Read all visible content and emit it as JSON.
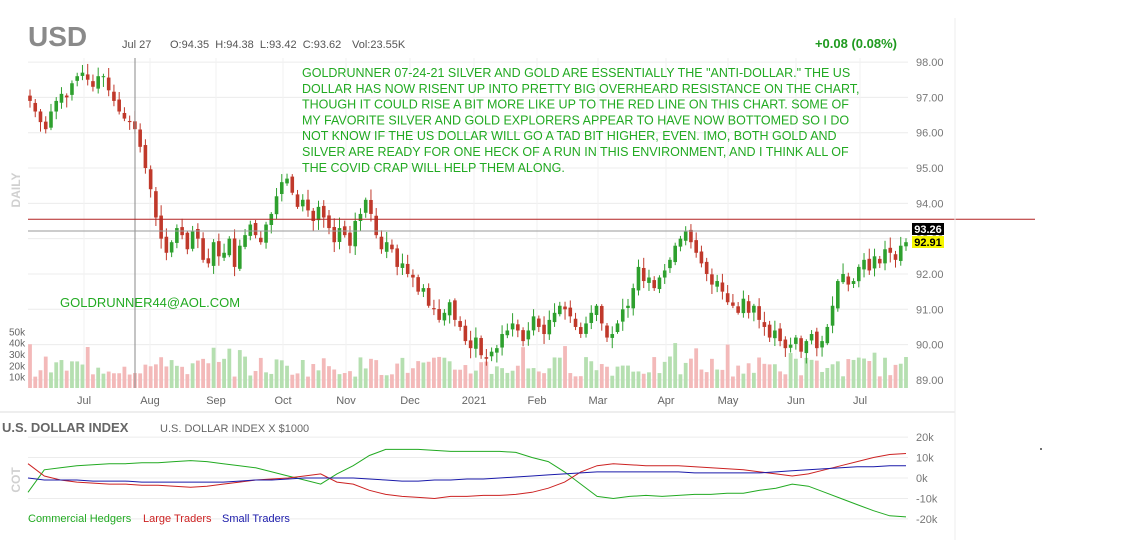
{
  "header": {
    "symbol": "USD",
    "date": "Jul 27",
    "ohlc": "O:94.35  H:94.38  L:93.42  C:93.62",
    "volume": "Vol:23.55K",
    "change": "+0.08 (0.08%)"
  },
  "annotation": {
    "lines": [
      "GOLDRUNNER 07-24-21 SILVER AND GOLD ARE ESSENTIALLY THE \"ANTI-DOLLAR.\"  THE US",
      "DOLLAR HAS NOW RISENT UP INTO PRETTY BIG OVERHEARD RESISTANCE ON THE CHART,",
      "THOUGH IT COULD RISE A BIT MORE LIKE UP TO THE RED LINE ON THIS CHART.  SOME OF",
      "MY FAVORITE SILVER AND GOLD EXPLORERS APPEAR TO HAVE NOW BOTTOMED SO I DO",
      "NOT KNOW IF THE US DOLLAR WILL GO A TAD BIT HIGHER, EVEN.  IMO, BOTH GOLD AND",
      "SILVER ARE READY FOR ONE HECK OF A RUN IN THIS ENVIRONMENT, AND I THINK ALL OF",
      "THE COVID CRAP WILL HELP THEM ALONG."
    ],
    "email": "GOLDRUNNER44@AOL.COM"
  },
  "side_labels": {
    "daily": "DAILY",
    "cot": "COT"
  },
  "chart_data": [
    {
      "type": "candlestick",
      "title": "USD",
      "x_tick_labels": [
        "Jul",
        "Aug",
        "Sep",
        "Oct",
        "Nov",
        "Dec",
        "2021",
        "Feb",
        "Mar",
        "Apr",
        "May",
        "Jun",
        "Jul"
      ],
      "y_tick_labels": [
        "98.00",
        "97.00",
        "96.00",
        "95.00",
        "94.00",
        "93.00",
        "92.00",
        "91.00",
        "90.00",
        "89.00"
      ],
      "ylim": [
        88.8,
        98.2
      ],
      "price_labels": {
        "upper": "93.26",
        "lower": "92.91"
      },
      "resistance_line": 93.55,
      "grid": true,
      "closes_approx": [
        96.9,
        96.6,
        96.3,
        96.1,
        96.6,
        96.9,
        97.1,
        97.0,
        97.4,
        97.6,
        97.7,
        97.5,
        97.3,
        97.6,
        97.6,
        97.2,
        96.9,
        96.6,
        96.4,
        96.3,
        96.1,
        95.6,
        95.0,
        94.4,
        93.6,
        93.0,
        92.6,
        92.9,
        93.3,
        93.1,
        92.7,
        93.2,
        93.0,
        92.4,
        92.3,
        92.9,
        92.5,
        92.6,
        93.0,
        92.2,
        92.8,
        93.1,
        93.4,
        93.1,
        92.9,
        93.4,
        93.7,
        94.2,
        94.6,
        94.7,
        94.3,
        93.9,
        94.1,
        93.8,
        93.5,
        93.9,
        93.6,
        93.3,
        92.9,
        93.3,
        93.1,
        92.8,
        93.5,
        93.7,
        94.1,
        93.7,
        93.1,
        92.7,
        92.9,
        92.7,
        92.2,
        92.3,
        92.0,
        91.9,
        91.5,
        91.6,
        91.1,
        91.0,
        90.7,
        90.9,
        91.2,
        90.7,
        90.5,
        90.1,
        89.9,
        90.2,
        89.7,
        89.6,
        89.8,
        89.9,
        90.3,
        90.4,
        90.6,
        90.4,
        90.1,
        90.4,
        90.8,
        90.5,
        90.3,
        90.7,
        90.9,
        91.1,
        91.0,
        90.8,
        90.5,
        90.3,
        90.6,
        90.9,
        91.1,
        90.6,
        90.2,
        90.3,
        90.6,
        91.0,
        91.1,
        91.6,
        92.2,
        91.8,
        91.9,
        91.6,
        91.9,
        92.1,
        92.4,
        92.8,
        93.0,
        93.2,
        92.9,
        92.6,
        92.3,
        92.0,
        91.7,
        91.8,
        91.5,
        91.2,
        91.1,
        90.9,
        91.3,
        90.9,
        91.1,
        90.7,
        90.5,
        90.2,
        90.4,
        90.1,
        89.9,
        90.0,
        90.2,
        89.8,
        90.1,
        90.3,
        89.9,
        90.1,
        90.5,
        91.1,
        91.8,
        92.0,
        91.7,
        91.8,
        92.2,
        92.4,
        92.1,
        92.5,
        92.3,
        92.7,
        92.6,
        92.4,
        92.8,
        92.9
      ]
    },
    {
      "type": "bar",
      "title": "Volume",
      "y_tick_labels": [
        "50k",
        "40k",
        "30k",
        "20k",
        "10k"
      ],
      "ylim": [
        0,
        60
      ]
    },
    {
      "type": "line",
      "title": "U.S. DOLLAR INDEX",
      "subtitle": "U.S. DOLLAR INDEX X $1000",
      "y_tick_labels": [
        "20k",
        "10k",
        "0k",
        "-10k",
        "-20k"
      ],
      "ylim": [
        -22,
        22
      ],
      "series": [
        {
          "name": "Commercial Hedgers",
          "color": "#22aa22",
          "values": [
            -7,
            4,
            5,
            6,
            6.5,
            7,
            7,
            7.5,
            7.5,
            8,
            8.5,
            8,
            7,
            6,
            5,
            3,
            1,
            -1,
            -3,
            2,
            6,
            11,
            14,
            14,
            14,
            13.5,
            13,
            13,
            13,
            13,
            12.5,
            10,
            8,
            3,
            -3,
            -9,
            -10,
            -9,
            -8.5,
            -9,
            -8.5,
            -8,
            -8,
            -7.5,
            -7.5,
            -6,
            -5,
            -3,
            -4,
            -7,
            -10,
            -13,
            -16,
            -18.5,
            -19
          ]
        },
        {
          "name": "Large Traders",
          "color": "#cc2222",
          "values": [
            7,
            1,
            -1,
            -2,
            -2.5,
            -3,
            -3,
            -3.5,
            -3.5,
            -4,
            -4.5,
            -4,
            -3,
            -2,
            -1,
            -0.5,
            0,
            1,
            2,
            -2,
            -3,
            -6,
            -8,
            -9,
            -9.5,
            -10,
            -9,
            -9,
            -8.5,
            -8.5,
            -8,
            -7,
            -5,
            -2,
            3,
            6,
            7,
            6.5,
            6,
            6,
            6,
            5.5,
            5,
            4.5,
            4,
            3,
            2,
            1,
            2,
            4,
            6,
            8,
            10,
            11.5,
            12
          ]
        },
        {
          "name": "Small Traders",
          "color": "#1a1aaa",
          "values": [
            0,
            -1,
            -1,
            -1,
            -1.5,
            -1.5,
            -1.5,
            -2,
            -2,
            -2,
            -2,
            -2,
            -2,
            -1.5,
            -1,
            -1,
            -0.5,
            0,
            0,
            0,
            0,
            -0.5,
            -1,
            -1.5,
            -1.5,
            -1,
            -1,
            -0.5,
            -0.5,
            0,
            0.5,
            1,
            1.5,
            2,
            2.5,
            3,
            3,
            3,
            3,
            3,
            3,
            2.5,
            2.5,
            2.5,
            2.5,
            2.5,
            3,
            3.5,
            4,
            4.5,
            5,
            5.5,
            5.5,
            6,
            6
          ]
        }
      ]
    }
  ]
}
